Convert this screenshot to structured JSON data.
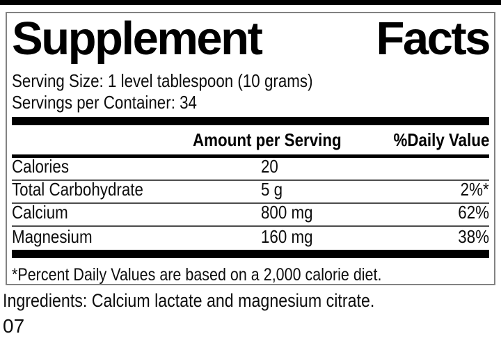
{
  "label": {
    "title": {
      "left": "Supplement",
      "right": "Facts"
    },
    "serving_size": "Serving Size: 1 level tablespoon (10 grams)",
    "servings_per_container": "Servings per Container: 34",
    "columns": {
      "amount": "Amount per Serving",
      "daily": "%Daily Value"
    },
    "rows": [
      {
        "name": "Calories",
        "amount": "20",
        "daily": ""
      },
      {
        "name": "Total Carbohydrate",
        "amount": "5 g",
        "daily": "2%*"
      },
      {
        "name": "Calcium",
        "amount": "800 mg",
        "daily": "62%"
      },
      {
        "name": "Magnesium",
        "amount": "160 mg",
        "daily": "38%"
      }
    ],
    "footnote": "*Percent Daily Values are based on a 2,000 calorie diet.",
    "ingredients": "Ingredients: Calcium lactate and magnesium citrate.",
    "code": "07"
  },
  "colors": {
    "background": "#ffffff",
    "text": "#0d0d0d",
    "heavy_bar": "#000000",
    "box_border": "#828282",
    "row_separator": "#4c4c4c"
  }
}
